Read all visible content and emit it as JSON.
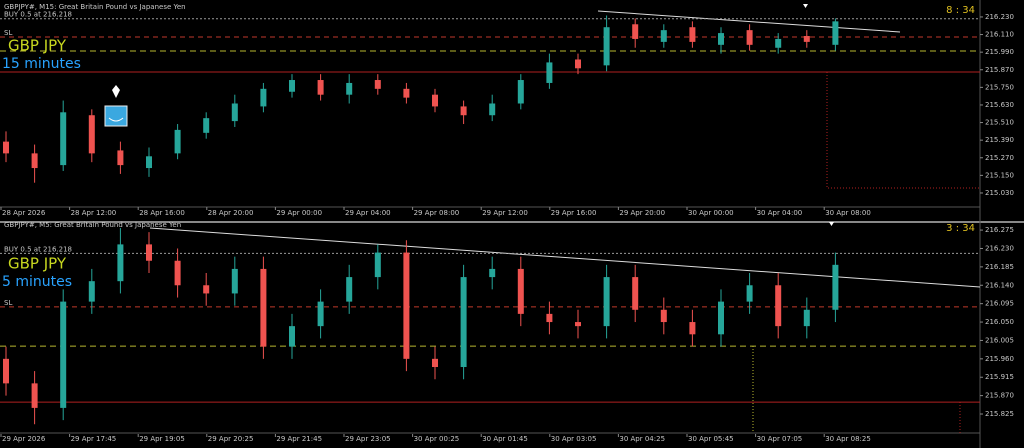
{
  "chart_data": [
    {
      "type": "candlestick",
      "title": "GBPJPY#, M15:  Great Britain Pound vs Japanese Yen",
      "symbol": "GBP JPY",
      "timeframe": "15 minutes",
      "timer": "8 : 34",
      "up_color": "#26a69a",
      "down_color": "#ef5350",
      "time_labels": [
        "28 Apr 2026",
        "28 Apr 12:00",
        "28 Apr 16:00",
        "28 Apr 20:00",
        "29 Apr 00:00",
        "29 Apr 04:00",
        "29 Apr 08:00",
        "29 Apr 12:00",
        "29 Apr 16:00",
        "29 Apr 20:00",
        "30 Apr 00:00",
        "30 Apr 04:00",
        "30 Apr 08:00"
      ],
      "open": [
        215.38,
        215.3,
        215.22,
        215.56,
        215.32,
        215.2,
        215.3,
        215.44,
        215.52,
        215.62,
        215.72,
        215.8,
        215.7,
        215.8,
        215.74,
        215.7,
        215.62,
        215.56,
        215.64,
        215.78,
        215.94,
        215.9,
        216.18,
        216.06,
        216.16,
        216.04,
        216.14,
        216.02,
        216.1,
        216.04
      ],
      "high": [
        215.45,
        215.36,
        215.66,
        215.6,
        215.38,
        215.34,
        215.5,
        215.58,
        215.7,
        215.78,
        215.84,
        215.84,
        215.84,
        215.84,
        215.78,
        215.74,
        215.66,
        215.7,
        215.84,
        215.98,
        215.98,
        216.24,
        216.22,
        216.18,
        216.2,
        216.16,
        216.18,
        216.12,
        216.14,
        216.22
      ],
      "low": [
        215.24,
        215.1,
        215.18,
        215.24,
        215.16,
        215.14,
        215.26,
        215.4,
        215.48,
        215.58,
        215.68,
        215.66,
        215.64,
        215.7,
        215.64,
        215.58,
        215.5,
        215.52,
        215.6,
        215.74,
        215.84,
        215.86,
        216.02,
        216.02,
        216.02,
        215.98,
        216.0,
        215.98,
        216.02,
        216.0
      ],
      "close": [
        215.3,
        215.2,
        215.58,
        215.3,
        215.22,
        215.28,
        215.46,
        215.54,
        215.64,
        215.74,
        215.8,
        215.7,
        215.78,
        215.74,
        215.68,
        215.62,
        215.56,
        215.64,
        215.8,
        215.92,
        215.88,
        216.16,
        216.08,
        216.14,
        216.06,
        216.12,
        216.04,
        216.08,
        216.06,
        216.2
      ],
      "ylim": [
        214.948,
        216.291
      ],
      "yticks": [
        {
          "value": 216.23,
          "label": "216.230"
        },
        {
          "value": 216.11,
          "label": "216.110"
        },
        {
          "value": 215.99,
          "label": "215.990"
        },
        {
          "value": 215.87,
          "label": "215.870"
        },
        {
          "value": 215.75,
          "label": "215.750"
        },
        {
          "value": 215.63,
          "label": "215.630"
        },
        {
          "value": 215.51,
          "label": "215.510"
        },
        {
          "value": 215.39,
          "label": "215.390"
        },
        {
          "value": 215.27,
          "label": "215.270"
        },
        {
          "value": 215.15,
          "label": "215.150"
        },
        {
          "value": 215.03,
          "label": "215.030"
        }
      ],
      "levels": [
        {
          "label": "BUY 0.5 at 216.218",
          "value": 216.218,
          "color": "#9a9a9a",
          "dash": "2,2"
        },
        {
          "label": "SL",
          "value": 216.093,
          "color": "#c0392b",
          "dash": "5,4"
        },
        {
          "value": 215.998,
          "color": "#b8b830",
          "dash": "6,4"
        },
        {
          "value": 215.855,
          "color": "#b02020",
          "dash": "none"
        }
      ]
    },
    {
      "type": "candlestick",
      "title": "GBPJPY#, M5:  Great Britain Pound vs Japanese Yen",
      "symbol": "GBP JPY",
      "timeframe": "5 minutes",
      "timer": "3 : 34",
      "up_color": "#26a69a",
      "down_color": "#ef5350",
      "time_labels": [
        "29 Apr 2026",
        "29 Apr 17:45",
        "29 Apr 19:05",
        "29 Apr 20:25",
        "29 Apr 21:45",
        "29 Apr 23:05",
        "30 Apr 00:25",
        "30 Apr 01:45",
        "30 Apr 03:05",
        "30 Apr 04:25",
        "30 Apr 05:45",
        "30 Apr 07:05",
        "30 Apr 08:25"
      ],
      "open": [
        215.96,
        215.9,
        215.84,
        216.1,
        216.15,
        216.24,
        216.2,
        216.14,
        216.12,
        216.18,
        215.99,
        216.04,
        216.1,
        216.16,
        216.22,
        215.96,
        215.94,
        216.16,
        216.18,
        216.07,
        216.05,
        216.04,
        216.16,
        216.08,
        216.05,
        216.02,
        216.1,
        216.14,
        216.04,
        216.08
      ],
      "high": [
        215.99,
        215.93,
        216.13,
        216.18,
        216.28,
        216.27,
        216.23,
        216.17,
        216.21,
        216.21,
        216.07,
        216.13,
        216.19,
        216.24,
        216.25,
        215.99,
        216.19,
        216.21,
        216.21,
        216.1,
        216.08,
        216.19,
        216.19,
        216.11,
        216.08,
        216.13,
        216.17,
        216.17,
        216.11,
        216.22
      ],
      "low": [
        215.87,
        215.8,
        215.81,
        216.07,
        216.12,
        216.17,
        216.11,
        216.09,
        216.09,
        215.96,
        215.96,
        216.01,
        216.07,
        216.13,
        215.93,
        215.91,
        215.91,
        216.13,
        216.04,
        216.02,
        216.01,
        216.01,
        216.05,
        216.02,
        215.99,
        215.99,
        216.07,
        216.01,
        216.01,
        216.05
      ],
      "close": [
        215.9,
        215.84,
        216.1,
        216.15,
        216.24,
        216.2,
        216.14,
        216.12,
        216.18,
        215.99,
        216.04,
        216.1,
        216.16,
        216.22,
        215.96,
        215.94,
        216.16,
        216.18,
        216.07,
        216.05,
        216.04,
        216.16,
        216.08,
        216.05,
        216.02,
        216.1,
        216.14,
        216.04,
        216.08,
        216.19
      ],
      "ylim": [
        215.781,
        216.285
      ],
      "yticks": [
        216.275,
        {
          "value": 216.23,
          "label": "216.230"
        },
        216.185,
        {
          "value": 216.14,
          "label": "216.140"
        },
        216.095,
        {
          "value": 216.05,
          "label": "216.050"
        },
        216.005,
        {
          "value": 215.96,
          "label": "215.960"
        },
        215.915,
        {
          "value": 215.87,
          "label": "215.870"
        },
        215.825
      ],
      "levels": [
        {
          "label": "BUY 0.5 at 216.218",
          "value": 216.218,
          "color": "#9a9a9a",
          "dash": "2,2"
        },
        {
          "label": "SL",
          "value": 216.087,
          "color": "#c0392b",
          "dash": "5,4"
        },
        {
          "value": 215.991,
          "color": "#b8b830",
          "dash": "6,4"
        },
        {
          "value": 215.854,
          "color": "#b02020",
          "dash": "none"
        }
      ]
    }
  ]
}
